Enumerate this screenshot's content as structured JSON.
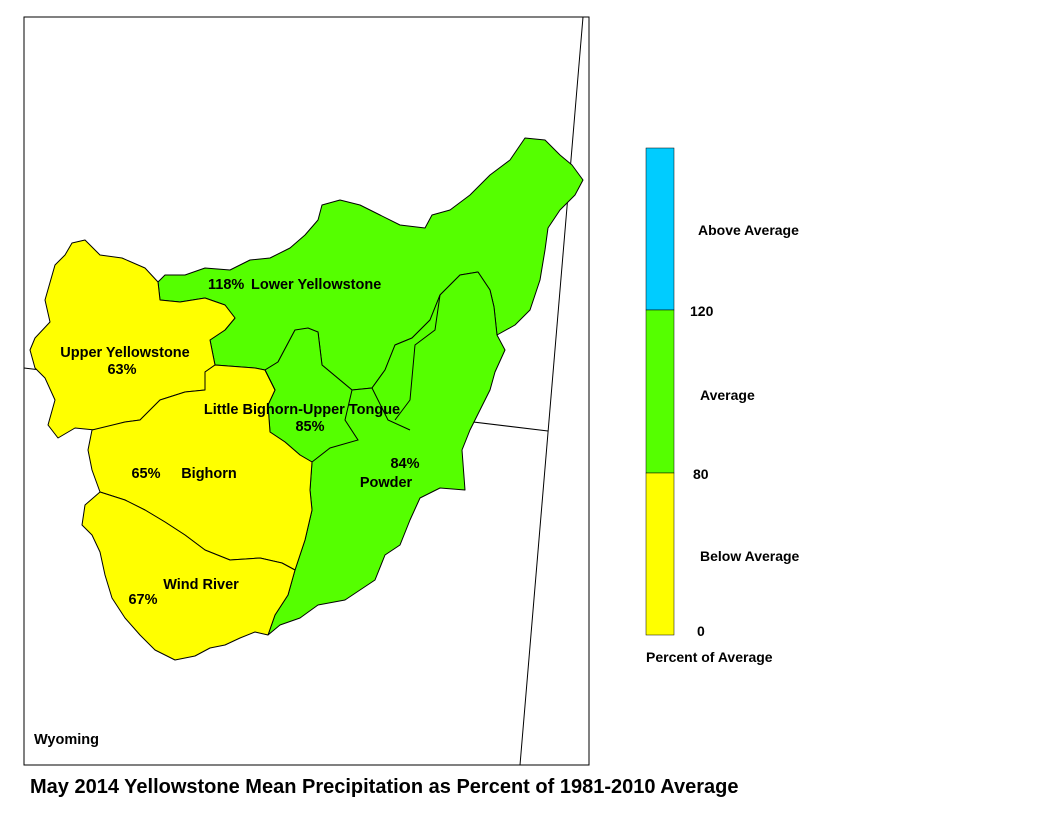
{
  "title": "May 2014 Yellowstone Mean Precipitation as Percent of 1981-2010 Average",
  "state_label": "Wyoming",
  "colors": {
    "below_average": "#ffff00",
    "average": "#55ff00",
    "above_average": "#00ccff",
    "border": "#000000"
  },
  "legend": {
    "title": "Percent of Average",
    "classes": [
      {
        "label": "Above Average",
        "color": "#00ccff"
      },
      {
        "label": "Average",
        "color": "#55ff00"
      },
      {
        "label": "Below Average",
        "color": "#ffff00"
      }
    ],
    "breaks": [
      "120",
      "80",
      "0"
    ]
  },
  "basins": [
    {
      "name": "Lower Yellowstone",
      "percent": "118%",
      "category": "Average"
    },
    {
      "name": "Upper Yellowstone",
      "percent": "63%",
      "category": "Below Average"
    },
    {
      "name": "Little Bighorn-Upper Tongue",
      "percent": "85%",
      "category": "Average"
    },
    {
      "name": "Bighorn",
      "percent": "65%",
      "category": "Below Average"
    },
    {
      "name": "Powder",
      "percent": "84%",
      "category": "Average"
    },
    {
      "name": "Wind River",
      "percent": "67%",
      "category": "Below Average"
    }
  ]
}
